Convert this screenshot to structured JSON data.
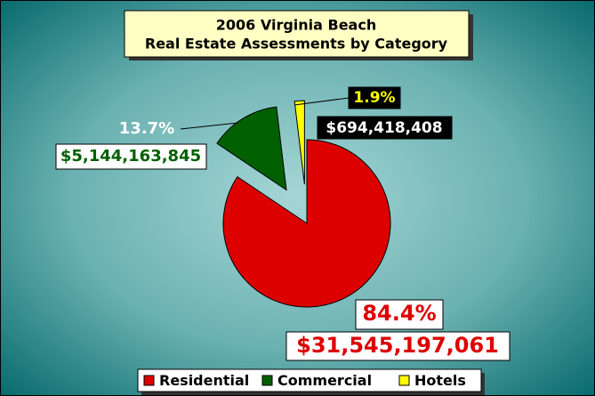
{
  "chart_data": {
    "type": "pie",
    "title": [
      "2006 Virginia Beach",
      "Real Estate Assessments by Category"
    ],
    "categories": [
      "Residential",
      "Commercial",
      "Hotels"
    ],
    "values": [
      84.4,
      13.7,
      1.9
    ],
    "value_labels": [
      "84.4%",
      "13.7%",
      "1.9%"
    ],
    "amounts": [
      31545197061,
      5144163845,
      694418408
    ],
    "amount_labels": [
      "$31,545,197,061",
      "$5,144,163,845",
      "$694,418,408"
    ],
    "colors": [
      "#dd0000",
      "#006000",
      "#ffff00"
    ],
    "legend": "bottom"
  }
}
